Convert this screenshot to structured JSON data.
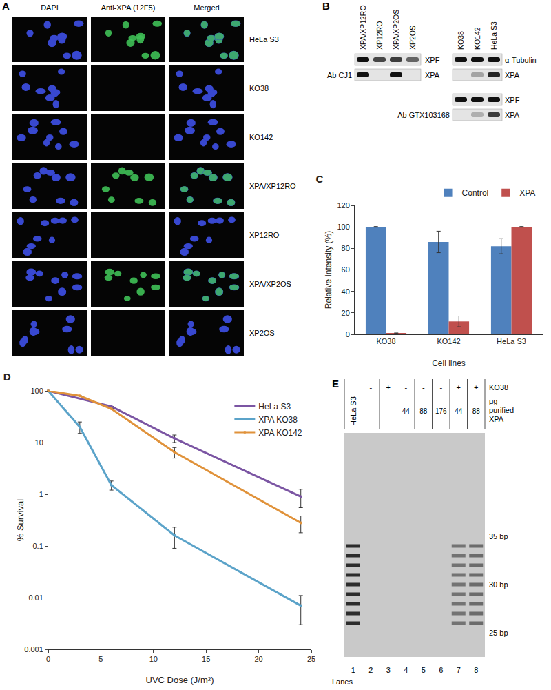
{
  "chart_data": [
    {
      "type": "bar",
      "title": "C",
      "categories": [
        "KO38",
        "KO142",
        "HeLa S3"
      ],
      "series": [
        {
          "name": "Control",
          "color": "#4f81bd",
          "values": [
            100,
            86,
            82
          ],
          "errors": [
            0.3,
            10,
            7
          ]
        },
        {
          "name": "XPA",
          "color": "#c0504d",
          "values": [
            1,
            12,
            100
          ],
          "errors": [
            0.3,
            5,
            0.3
          ]
        }
      ],
      "x_label": "Cell lines",
      "y_label": "Relative Intensity (%)",
      "ylim": [
        0,
        120
      ],
      "yticks": [
        0,
        20,
        40,
        60,
        80,
        100,
        120
      ],
      "grid": false,
      "legend": "top right"
    },
    {
      "type": "line",
      "title": "D",
      "series": [
        {
          "name": "HeLa S3",
          "color": "#7b55a3",
          "x": [
            0,
            6,
            12,
            24
          ],
          "values": [
            100,
            50,
            12,
            0.9
          ],
          "errors": [
            0,
            0,
            2,
            0.35
          ]
        },
        {
          "name": "XPA KO38",
          "color": "#5ba3c9",
          "x": [
            0,
            3,
            6,
            12,
            24
          ],
          "values": [
            100,
            20,
            1.5,
            0.16,
            0.007
          ],
          "errors": [
            0,
            5,
            0.3,
            0.07,
            0.004
          ]
        },
        {
          "name": "XPA KO142",
          "color": "#e0923a",
          "x": [
            0,
            3,
            6,
            12,
            24
          ],
          "values": [
            100,
            80,
            45,
            6.5,
            0.28
          ],
          "errors": [
            0,
            0,
            0,
            1.5,
            0.1
          ]
        }
      ],
      "x_label": "UVC Dose (J/m²)",
      "y_label": "% Survival",
      "xlim": [
        0,
        25
      ],
      "xticks": [
        0,
        5,
        10,
        15,
        20,
        25
      ],
      "ylim": [
        0.001,
        100
      ],
      "yticks": [
        0.001,
        0.01,
        0.1,
        1,
        10,
        100
      ],
      "log": "y",
      "grid": false,
      "legend": "top right",
      "marker": "circle"
    }
  ],
  "panels": {
    "A": {
      "label": "A",
      "columns": [
        "DAPI",
        "Anti-XPA (12F5)",
        "Merged"
      ],
      "rows": [
        {
          "name": "HeLa S3",
          "xpa_signal": true
        },
        {
          "name": "KO38",
          "xpa_signal": false
        },
        {
          "name": "KO142",
          "xpa_signal": false
        },
        {
          "name": "XPA/XP12RO",
          "xpa_signal": true
        },
        {
          "name": "XP12RO",
          "xpa_signal": false
        },
        {
          "name": "XPA/XP2OS",
          "xpa_signal": true
        },
        {
          "name": "XP2OS",
          "xpa_signal": false
        }
      ]
    },
    "B": {
      "label": "B",
      "blots": [
        {
          "lanes": [
            "XPA/XP12RO",
            "XP12RO",
            "XPA/XP2OS",
            "XP2OS"
          ],
          "rows": [
            {
              "protein": "XPF",
              "bands": [
                1,
                0.75,
                0.8,
                0.6
              ]
            },
            {
              "protein": "XPA",
              "antibody": "Ab CJ1",
              "bands": [
                1,
                0,
                1,
                0
              ]
            }
          ]
        },
        {
          "lanes": [
            "KO38",
            "KO142",
            "HeLa S3"
          ],
          "rows": [
            {
              "protein": "α-Tubulin",
              "bands": [
                1,
                1,
                1
              ]
            },
            {
              "protein": "XPA",
              "bands": [
                0,
                0.3,
                0.9
              ]
            },
            {
              "protein": "XPF",
              "bands": [
                1,
                1,
                1
              ]
            },
            {
              "protein": "XPA",
              "antibody": "Ab GTX103168",
              "bands": [
                0,
                0.25,
                0.8
              ]
            }
          ]
        }
      ]
    },
    "E": {
      "label": "E",
      "row_labels": {
        "ko38": "KO38",
        "xpa": [
          "μg",
          "purified",
          "XPA"
        ]
      },
      "lanes_label": "Lanes",
      "lanes": [
        {
          "number": 1,
          "header": "HeLa S3",
          "signal": 1
        },
        {
          "number": 2,
          "ko38": "-",
          "xpa": "-",
          "signal": 0
        },
        {
          "number": 3,
          "ko38": "+",
          "xpa": "-",
          "signal": 0
        },
        {
          "number": 4,
          "ko38": "-",
          "xpa": "44",
          "signal": 0
        },
        {
          "number": 5,
          "ko38": "-",
          "xpa": "88",
          "signal": 0
        },
        {
          "number": 6,
          "ko38": "-",
          "xpa": "176",
          "signal": 0
        },
        {
          "number": 7,
          "ko38": "+",
          "xpa": "44",
          "signal": 0.55
        },
        {
          "number": 8,
          "ko38": "+",
          "xpa": "88",
          "signal": 0.6
        }
      ],
      "markers": [
        {
          "value": 35,
          "label": "35 bp"
        },
        {
          "value": 30,
          "label": "30 bp"
        },
        {
          "value": 25,
          "label": "25 bp"
        }
      ],
      "product_range_bp": [
        26,
        34
      ]
    }
  }
}
